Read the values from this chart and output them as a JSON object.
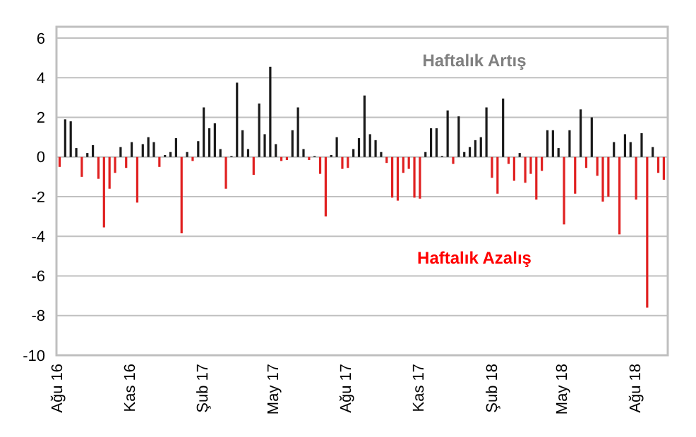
{
  "chart_data": {
    "type": "bar",
    "annotations": [
      "Haftalık Artış",
      "Haftalık Azalış"
    ],
    "x": [
      "2016-08-05",
      "2016-08-12",
      "2016-08-19",
      "2016-08-26",
      "2016-09-02",
      "2016-09-09",
      "2016-09-16",
      "2016-09-23",
      "2016-09-30",
      "2016-10-07",
      "2016-10-14",
      "2016-10-21",
      "2016-10-28",
      "2016-11-04",
      "2016-11-11",
      "2016-11-18",
      "2016-11-25",
      "2016-12-02",
      "2016-12-09",
      "2016-12-16",
      "2016-12-23",
      "2016-12-30",
      "2017-01-06",
      "2017-01-13",
      "2017-01-20",
      "2017-01-27",
      "2017-02-03",
      "2017-02-10",
      "2017-02-17",
      "2017-02-24",
      "2017-03-03",
      "2017-03-10",
      "2017-03-17",
      "2017-03-24",
      "2017-03-31",
      "2017-04-07",
      "2017-04-14",
      "2017-04-21",
      "2017-04-28",
      "2017-05-05",
      "2017-05-12",
      "2017-05-19",
      "2017-05-26",
      "2017-06-02",
      "2017-06-09",
      "2017-06-16",
      "2017-06-23",
      "2017-06-30",
      "2017-07-07",
      "2017-07-14",
      "2017-07-21",
      "2017-07-28",
      "2017-08-04",
      "2017-08-11",
      "2017-08-18",
      "2017-08-25",
      "2017-09-01",
      "2017-09-08",
      "2017-09-15",
      "2017-09-22",
      "2017-09-29",
      "2017-10-06",
      "2017-10-13",
      "2017-10-20",
      "2017-10-27",
      "2017-11-03",
      "2017-11-10",
      "2017-11-17",
      "2017-11-24",
      "2017-12-01",
      "2017-12-08",
      "2017-12-15",
      "2017-12-22",
      "2017-12-29",
      "2018-01-05",
      "2018-01-12",
      "2018-01-19",
      "2018-01-26",
      "2018-02-02",
      "2018-02-09",
      "2018-02-16",
      "2018-02-23",
      "2018-03-02",
      "2018-03-09",
      "2018-03-16",
      "2018-03-23",
      "2018-03-30",
      "2018-04-06",
      "2018-04-13",
      "2018-04-20",
      "2018-04-27",
      "2018-05-04",
      "2018-05-11",
      "2018-05-18",
      "2018-05-25",
      "2018-06-01",
      "2018-06-08",
      "2018-06-15",
      "2018-06-22",
      "2018-06-29",
      "2018-07-06",
      "2018-07-13",
      "2018-07-20",
      "2018-07-27",
      "2018-08-03",
      "2018-08-10",
      "2018-08-17",
      "2018-08-24",
      "2018-08-31",
      "2018-09-07"
    ],
    "values": [
      -0.5,
      1.9,
      1.8,
      0.45,
      -1.0,
      0.2,
      0.6,
      -1.1,
      -3.55,
      -1.6,
      -0.8,
      0.5,
      -0.55,
      0.75,
      -2.3,
      0.65,
      1.0,
      0.75,
      -0.5,
      0.1,
      0.25,
      0.95,
      -3.85,
      0.25,
      -0.2,
      0.8,
      2.5,
      1.45,
      1.7,
      0.4,
      -1.6,
      0.05,
      3.75,
      1.35,
      0.4,
      -0.9,
      2.7,
      1.15,
      4.55,
      0.65,
      -0.2,
      -0.15,
      1.35,
      2.5,
      0.4,
      -0.15,
      0.05,
      -0.85,
      -3.0,
      0.1,
      1.0,
      -0.6,
      -0.55,
      0.4,
      0.95,
      3.1,
      1.15,
      0.85,
      0.25,
      -0.3,
      -2.05,
      -2.2,
      -0.8,
      -0.6,
      -2.05,
      -2.1,
      0.25,
      1.45,
      1.45,
      0.05,
      2.35,
      -0.35,
      2.05,
      0.25,
      0.5,
      0.85,
      1.0,
      2.5,
      -1.05,
      -1.85,
      2.95,
      -0.35,
      -1.2,
      0.2,
      -1.3,
      -0.85,
      -2.15,
      -0.7,
      1.35,
      1.35,
      0.45,
      -3.4,
      1.35,
      -1.85,
      2.4,
      -0.55,
      2.0,
      -0.95,
      -2.25,
      -2.0,
      0.75,
      -3.9,
      1.15,
      0.75,
      -2.15,
      1.2,
      -7.6,
      0.5,
      -0.8,
      -1.15
    ],
    "colors": [
      "#e02020",
      "#1a1a1a",
      "#1a1a1a",
      "#1a1a1a",
      "#e02020",
      "#1a1a1a",
      "#1a1a1a",
      "#e02020",
      "#e02020",
      "#e02020",
      "#e02020",
      "#1a1a1a",
      "#e02020",
      "#1a1a1a",
      "#e02020",
      "#1a1a1a",
      "#1a1a1a",
      "#1a1a1a",
      "#e02020",
      "#1a1a1a",
      "#1a1a1a",
      "#1a1a1a",
      "#e02020",
      "#1a1a1a",
      "#e02020",
      "#1a1a1a",
      "#1a1a1a",
      "#1a1a1a",
      "#1a1a1a",
      "#1a1a1a",
      "#e02020",
      "#1a1a1a",
      "#1a1a1a",
      "#1a1a1a",
      "#1a1a1a",
      "#e02020",
      "#1a1a1a",
      "#1a1a1a",
      "#1a1a1a",
      "#1a1a1a",
      "#e02020",
      "#e02020",
      "#1a1a1a",
      "#1a1a1a",
      "#1a1a1a",
      "#e02020",
      "#1a1a1a",
      "#e02020",
      "#e02020",
      "#1a1a1a",
      "#1a1a1a",
      "#e02020",
      "#e02020",
      "#1a1a1a",
      "#1a1a1a",
      "#1a1a1a",
      "#1a1a1a",
      "#1a1a1a",
      "#1a1a1a",
      "#e02020",
      "#e02020",
      "#e02020",
      "#e02020",
      "#e02020",
      "#e02020",
      "#e02020",
      "#1a1a1a",
      "#1a1a1a",
      "#1a1a1a",
      "#1a1a1a",
      "#1a1a1a",
      "#e02020",
      "#1a1a1a",
      "#1a1a1a",
      "#1a1a1a",
      "#1a1a1a",
      "#1a1a1a",
      "#1a1a1a",
      "#e02020",
      "#e02020",
      "#1a1a1a",
      "#e02020",
      "#e02020",
      "#1a1a1a",
      "#e02020",
      "#e02020",
      "#e02020",
      "#e02020",
      "#1a1a1a",
      "#1a1a1a",
      "#1a1a1a",
      "#e02020",
      "#1a1a1a",
      "#e02020",
      "#1a1a1a",
      "#e02020",
      "#1a1a1a",
      "#e02020",
      "#e02020",
      "#e02020",
      "#1a1a1a",
      "#e02020",
      "#1a1a1a",
      "#1a1a1a",
      "#e02020",
      "#1a1a1a",
      "#e02020",
      "#1a1a1a",
      "#e02020",
      "#e02020"
    ],
    "xlim": [
      "2016-08-01",
      "2018-09-12"
    ],
    "xticks": [
      {
        "value": "2016-08-01",
        "label": "Ağu 16"
      },
      {
        "value": "2016-11-01",
        "label": "Kas 16"
      },
      {
        "value": "2017-02-01",
        "label": "Şub 17"
      },
      {
        "value": "2017-05-01",
        "label": "May 17"
      },
      {
        "value": "2017-08-01",
        "label": "Ağu 17"
      },
      {
        "value": "2017-11-01",
        "label": "Kas 17"
      },
      {
        "value": "2018-02-01",
        "label": "Şub 18"
      },
      {
        "value": "2018-05-01",
        "label": "May 18"
      },
      {
        "value": "2018-08-01",
        "label": "Ağu 18"
      }
    ],
    "ylim": [
      -10,
      6
    ],
    "yticks": [
      -10,
      -8,
      -6,
      -4,
      -2,
      0,
      2,
      4,
      6
    ],
    "grid": "y"
  }
}
